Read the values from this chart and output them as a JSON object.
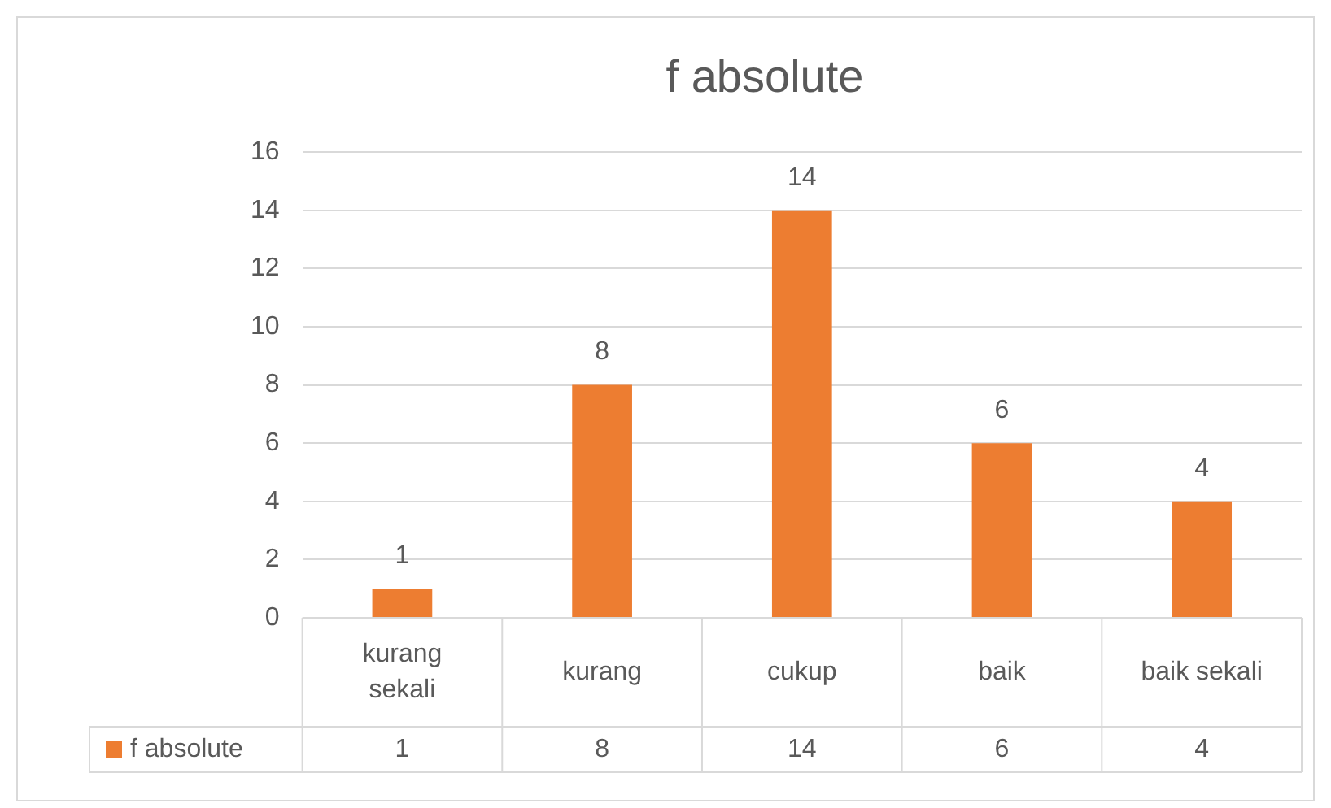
{
  "chart_data": {
    "type": "bar",
    "title": "f absolute",
    "categories": [
      "kurang sekali",
      "kurang",
      "cukup",
      "baik",
      "baik sekali"
    ],
    "series": [
      {
        "name": "f absolute",
        "color": "#ed7d31",
        "values": [
          1,
          8,
          14,
          6,
          4
        ]
      }
    ],
    "annotations": [
      {
        "text": "1",
        "x": "kurang sekali",
        "y": 1
      },
      {
        "text": "8",
        "x": "kurang",
        "y": 8
      },
      {
        "text": "14",
        "x": "cukup",
        "y": 14
      },
      {
        "text": "6",
        "x": "baik",
        "y": 6
      },
      {
        "text": "4",
        "x": "baik sekali",
        "y": 4
      }
    ],
    "ylim": [
      0,
      16
    ],
    "yticks": [
      0,
      2,
      4,
      6,
      8,
      10,
      12,
      14,
      16
    ],
    "grid": "y",
    "data_labels": true,
    "legend": "bottom"
  }
}
